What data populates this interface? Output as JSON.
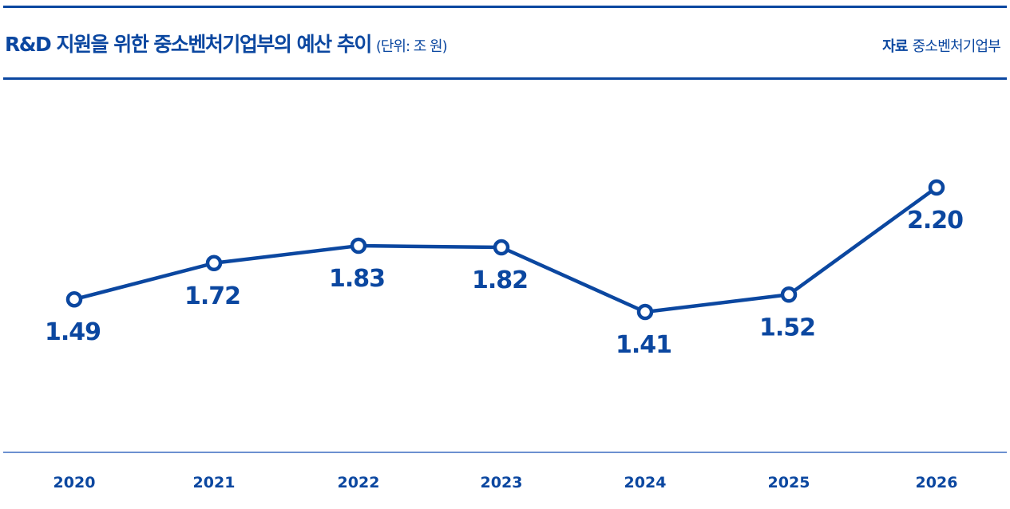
{
  "header": {
    "title": "R&D 지원을 위한 중소벤처기업부의 예산 추이",
    "unit": "(단위: 조 원)",
    "source_label": "자료",
    "source": "중소벤처기업부"
  },
  "colors": {
    "line": "#0b47a0",
    "axis": "#3b6cc0"
  },
  "chart_data": {
    "type": "line",
    "title": "R&D 지원을 위한 중소벤처기업부의 예산 추이",
    "unit": "조 원",
    "xlabel": "",
    "ylabel": "",
    "categories": [
      "2020",
      "2021",
      "2022",
      "2023",
      "2024",
      "2025",
      "2026"
    ],
    "series": [
      {
        "name": "예산",
        "values": [
          1.49,
          1.72,
          1.83,
          1.82,
          1.41,
          1.52,
          2.2
        ],
        "labels": [
          "1.49",
          "1.72",
          "1.83",
          "1.82",
          "1.41",
          "1.52",
          "2.20"
        ]
      }
    ],
    "ylim": [
      0.0,
      2.6
    ],
    "grid": false,
    "legend": "none"
  }
}
